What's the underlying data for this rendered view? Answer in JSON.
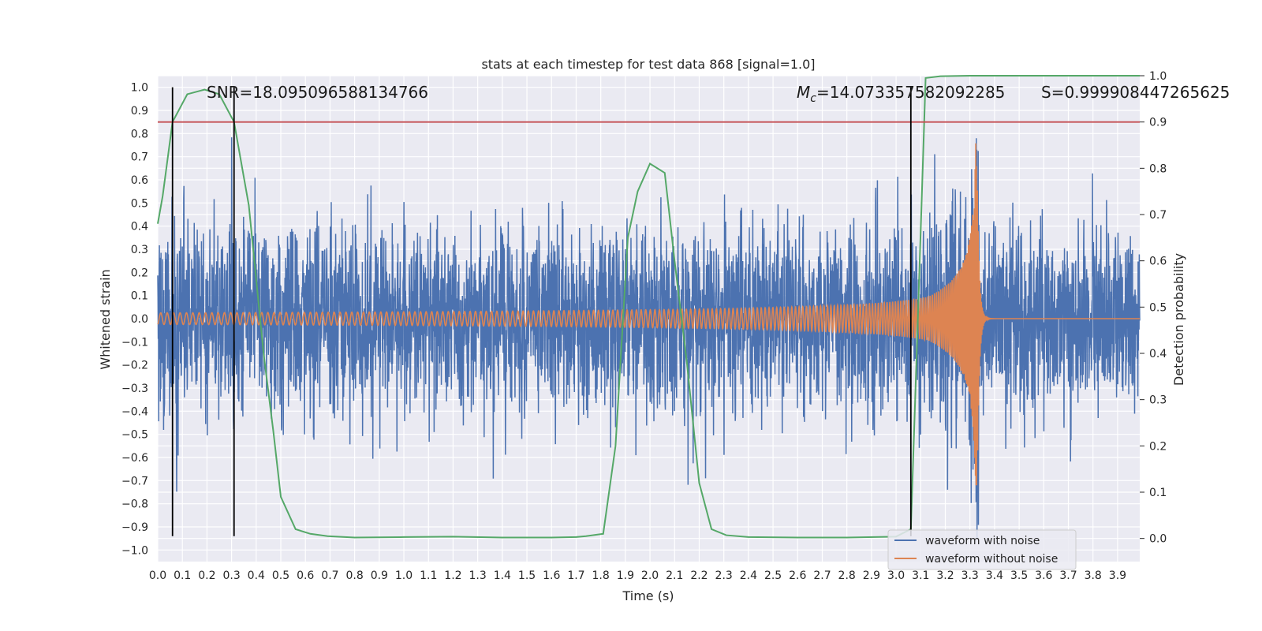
{
  "chart_data": {
    "type": "line",
    "title": "stats at each timestep for test data 868 [signal=1.0]",
    "xlabel": "Time (s)",
    "ylabel_left": "Whitened strain",
    "ylabel_right": "Detection probability",
    "xlim": [
      0.0,
      3.99
    ],
    "ylim_left": [
      -1.05,
      1.05
    ],
    "ylim_right": [
      -0.05,
      1.0
    ],
    "x_ticks": [
      "0.0",
      "0.1",
      "0.2",
      "0.3",
      "0.4",
      "0.5",
      "0.6",
      "0.7",
      "0.8",
      "0.9",
      "1.0",
      "1.1",
      "1.2",
      "1.3",
      "1.4",
      "1.5",
      "1.6",
      "1.7",
      "1.8",
      "1.9",
      "2.0",
      "2.1",
      "2.2",
      "2.3",
      "2.4",
      "2.5",
      "2.6",
      "2.7",
      "2.8",
      "2.9",
      "3.0",
      "3.1",
      "3.2",
      "3.3",
      "3.4",
      "3.5",
      "3.6",
      "3.7",
      "3.8",
      "3.9"
    ],
    "y_ticks_left": [
      "1.0",
      "0.9",
      "0.8",
      "0.7",
      "0.6",
      "0.5",
      "0.4",
      "0.3",
      "0.2",
      "0.1",
      "0.0",
      "−0.1",
      "−0.2",
      "−0.3",
      "−0.4",
      "−0.5",
      "−0.6",
      "−0.7",
      "−0.8",
      "−0.9",
      "−1.0"
    ],
    "y_ticks_right": [
      "1.0",
      "0.9",
      "0.8",
      "0.7",
      "0.6",
      "0.5",
      "0.4",
      "0.3",
      "0.2",
      "0.1",
      "0.0"
    ],
    "annotations": {
      "snr": "SNR=18.095096588134766",
      "mc_symbol": "M",
      "mc_sub": "c",
      "mc_value": "=14.073357582092285",
      "s": "S=0.999908447265625"
    },
    "threshold": {
      "axis": "right",
      "value": 0.9,
      "color": "#c44e52"
    },
    "vertical_lines": [
      0.06,
      0.31,
      3.06
    ],
    "series": [
      {
        "name": "waveform with noise",
        "color": "#4c72b0",
        "axis": "left",
        "kind": "noise",
        "amplitude_range": [
          -0.95,
          1.0
        ]
      },
      {
        "name": "waveform without noise",
        "color": "#dd8452",
        "axis": "left",
        "kind": "chirp",
        "merger_time": 3.33,
        "peak_range": [
          -0.72,
          0.82
        ]
      },
      {
        "name": "Detection probability",
        "color": "#55a868",
        "axis": "right",
        "x": [
          0.0,
          0.02,
          0.06,
          0.12,
          0.19,
          0.25,
          0.31,
          0.37,
          0.43,
          0.47,
          0.5,
          0.56,
          0.62,
          0.69,
          0.8,
          1.0,
          1.2,
          1.4,
          1.6,
          1.7,
          1.74,
          1.81,
          1.86,
          1.91,
          1.95,
          2.0,
          2.06,
          2.1,
          2.15,
          2.2,
          2.25,
          2.31,
          2.4,
          2.6,
          2.8,
          3.0,
          3.06,
          3.09,
          3.12,
          3.18,
          3.3,
          3.6,
          3.99
        ],
        "y": [
          0.68,
          0.74,
          0.9,
          0.96,
          0.97,
          0.96,
          0.9,
          0.72,
          0.4,
          0.23,
          0.09,
          0.02,
          0.01,
          0.005,
          0.002,
          0.003,
          0.004,
          0.002,
          0.002,
          0.003,
          0.005,
          0.01,
          0.2,
          0.65,
          0.75,
          0.81,
          0.79,
          0.6,
          0.38,
          0.12,
          0.02,
          0.007,
          0.003,
          0.002,
          0.002,
          0.004,
          0.02,
          0.5,
          0.995,
          0.999,
          0.9999,
          0.9999,
          1.0
        ]
      }
    ],
    "legend": {
      "placement": "lower-right",
      "entries": [
        "waveform with noise",
        "waveform without noise"
      ]
    }
  }
}
